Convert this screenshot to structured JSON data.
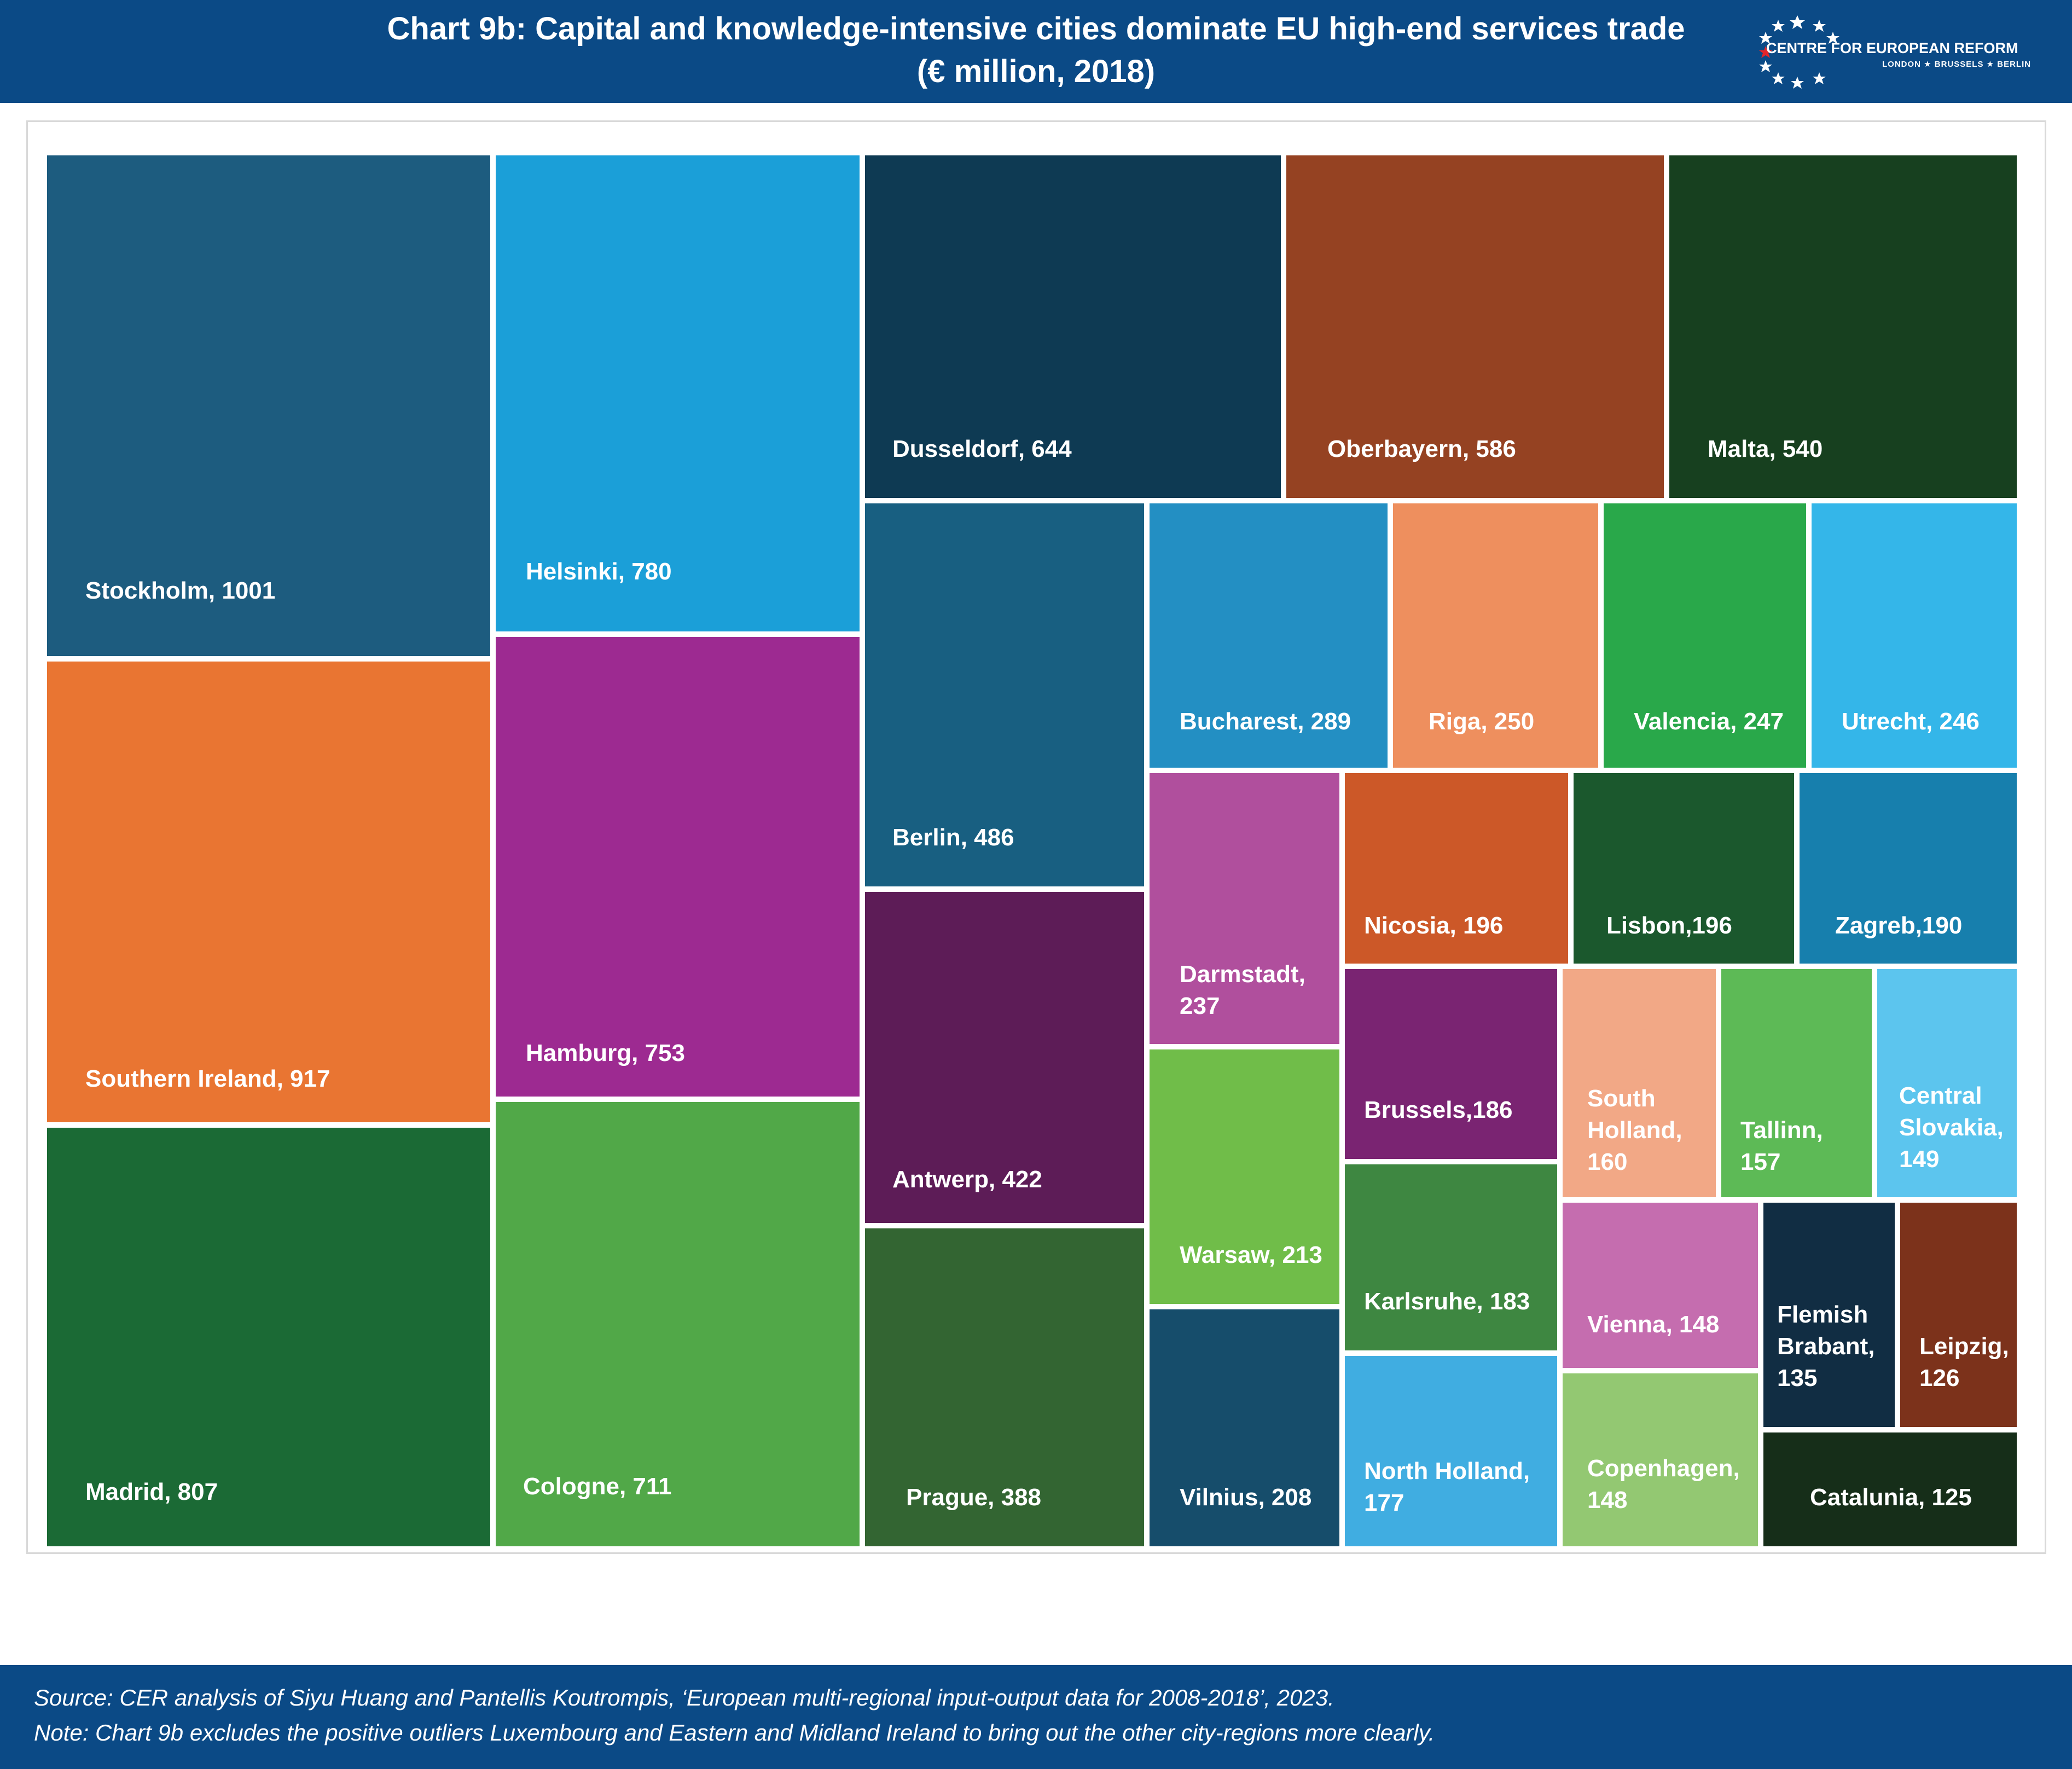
{
  "header": {
    "title_line1": "Chart 9b: Capital and knowledge-intensive cities dominate EU high-end services trade",
    "title_line2": "(€ million, 2018)",
    "logo_name": "CENTRE FOR EUROPEAN REFORM",
    "logo_sub": "LONDON ★ BRUSSELS ★ BERLIN"
  },
  "colors": {
    "header_bg": "#0b4a86",
    "footer_bg": "#0b4a86"
  },
  "chart_data": {
    "type": "treemap",
    "title": "Chart 9b: Capital and knowledge-intensive cities dominate EU high-end services trade",
    "subtitle": "(€ million, 2018)",
    "items": [
      {
        "label": "Stockholm, 1001",
        "name": "Stockholm",
        "value": 1001,
        "color": "#1d5c7f"
      },
      {
        "label": "Southern Ireland, 917",
        "name": "Southern Ireland",
        "value": 917,
        "color": "#e97532"
      },
      {
        "label": "Madrid, 807",
        "name": "Madrid",
        "value": 807,
        "color": "#1b6a35"
      },
      {
        "label": "Helsinki, 780",
        "name": "Helsinki",
        "value": 780,
        "color": "#1b9fd8"
      },
      {
        "label": "Hamburg, 753",
        "name": "Hamburg",
        "value": 753,
        "color": "#9d2a91"
      },
      {
        "label": "Cologne, 711",
        "name": "Cologne",
        "value": 711,
        "color": "#51a848"
      },
      {
        "label": "Dusseldorf, 644",
        "name": "Dusseldorf",
        "value": 644,
        "color": "#0e3a53"
      },
      {
        "label": "Oberbayern, 586",
        "name": "Oberbayern",
        "value": 586,
        "color": "#954222"
      },
      {
        "label": "Malta, 540",
        "name": "Malta",
        "value": 540,
        "color": "#17401f"
      },
      {
        "label": "Berlin, 486",
        "name": "Berlin",
        "value": 486,
        "color": "#185f81"
      },
      {
        "label": "Antwerp, 422",
        "name": "Antwerp",
        "value": 422,
        "color": "#5d1c57"
      },
      {
        "label": "Prague, 388",
        "name": "Prague",
        "value": 388,
        "color": "#336532"
      },
      {
        "label": "Bucharest, 289",
        "name": "Bucharest",
        "value": 289,
        "color": "#238fc3"
      },
      {
        "label": "Riga, 250",
        "name": "Riga",
        "value": 250,
        "color": "#ee8f5e"
      },
      {
        "label": "Valencia, 247",
        "name": "Valencia",
        "value": 247,
        "color": "#29a84a"
      },
      {
        "label": "Utrecht, 246",
        "name": "Utrecht",
        "value": 246,
        "color": "#34b6e9"
      },
      {
        "label": "Darmstadt,\n237",
        "name": "Darmstadt",
        "value": 237,
        "color": "#b04f9d"
      },
      {
        "label": "Nicosia, 196",
        "name": "Nicosia",
        "value": 196,
        "color": "#cc5828"
      },
      {
        "label": "Lisbon,196",
        "name": "Lisbon",
        "value": 196,
        "color": "#1b582d"
      },
      {
        "label": "Zagreb,190",
        "name": "Zagreb",
        "value": 190,
        "color": "#177fad"
      },
      {
        "label": "Warsaw, 213",
        "name": "Warsaw",
        "value": 213,
        "color": "#70bd49"
      },
      {
        "label": "Vilnius, 208",
        "name": "Vilnius",
        "value": 208,
        "color": "#164d6b"
      },
      {
        "label": "Brussels,186",
        "name": "Brussels",
        "value": 186,
        "color": "#7a2472"
      },
      {
        "label": "Karlsruhe, 183",
        "name": "Karlsruhe",
        "value": 183,
        "color": "#3e8741"
      },
      {
        "label": "North Holland,\n177",
        "name": "North Holland",
        "value": 177,
        "color": "#40ade1"
      },
      {
        "label": "South\nHolland,\n160",
        "name": "South Holland",
        "value": 160,
        "color": "#f2a886"
      },
      {
        "label": "Tallinn,\n157",
        "name": "Tallinn",
        "value": 157,
        "color": "#5dba56"
      },
      {
        "label": "Central\nSlovakia,\n149",
        "name": "Central Slovakia",
        "value": 149,
        "color": "#5cc5ee"
      },
      {
        "label": "Vienna, 148",
        "name": "Vienna",
        "value": 148,
        "color": "#c56daf"
      },
      {
        "label": "Copenhagen,\n148",
        "name": "Copenhagen",
        "value": 148,
        "color": "#93c872"
      },
      {
        "label": "Flemish\nBrabant,\n135",
        "name": "Flemish Brabant",
        "value": 135,
        "color": "#112d43"
      },
      {
        "label": "Leipzig,\n126",
        "name": "Leipzig",
        "value": 126,
        "color": "#7c321b"
      },
      {
        "label": "Catalunia, 125",
        "name": "Catalunia",
        "value": 125,
        "color": "#162e19"
      }
    ]
  },
  "footer": {
    "source": "Source: CER analysis of Siyu Huang and Pantellis Koutrompis, ‘European multi-regional input-output data for 2008-2018’, 2023.",
    "note": "Note: Chart 9b excludes the positive outliers Luxembourg and Eastern and Midland Ireland to bring out the other city-regions more clearly."
  }
}
